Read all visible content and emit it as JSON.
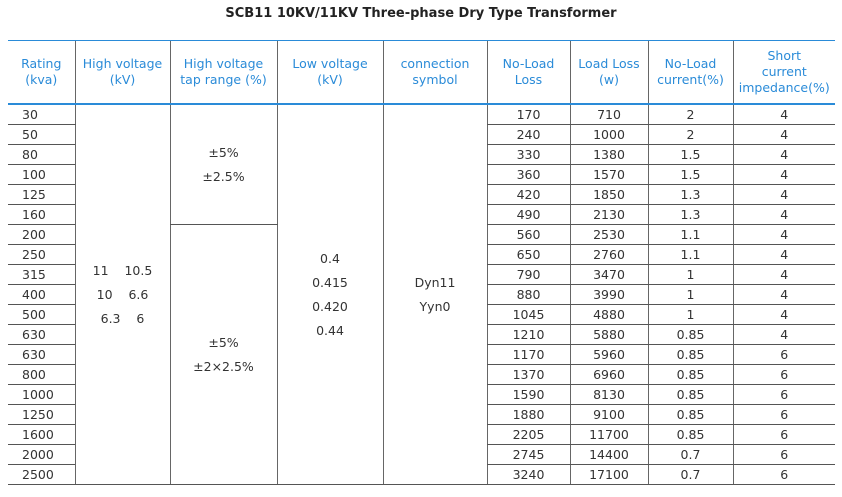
{
  "title": "SCB11  10KV/11KV Three-phase Dry Type Transformer",
  "table": {
    "headers": [
      [
        "Rating",
        "(kva)"
      ],
      [
        "High voltage",
        "(kV)"
      ],
      [
        "High voltage",
        "tap range (%)"
      ],
      [
        "Low voltage",
        "(kV)"
      ],
      [
        "connection",
        "symbol"
      ],
      [
        "No-Load",
        "Loss"
      ],
      [
        "Load Loss",
        "(w)"
      ],
      [
        "No-Load",
        "current(%)"
      ],
      [
        "Short",
        "current",
        "impedance(%)"
      ]
    ],
    "high_voltage": [
      "11    10.5",
      "10    6.6",
      "6.3    6"
    ],
    "tap_range": [
      [
        "±5%",
        "±2.5%"
      ],
      [
        "±5%",
        "±2×2.5%"
      ]
    ],
    "low_voltage": [
      "0.4",
      "0.415",
      "0.420",
      "0.44"
    ],
    "connection": [
      "Dyn11",
      "Yyn0"
    ],
    "rows": [
      [
        "30",
        "170",
        "710",
        "2",
        "4"
      ],
      [
        "50",
        "240",
        "1000",
        "2",
        "4"
      ],
      [
        "80",
        "330",
        "1380",
        "1.5",
        "4"
      ],
      [
        "100",
        "360",
        "1570",
        "1.5",
        "4"
      ],
      [
        "125",
        "420",
        "1850",
        "1.3",
        "4"
      ],
      [
        "160",
        "490",
        "2130",
        "1.3",
        "4"
      ],
      [
        "200",
        "560",
        "2530",
        "1.1",
        "4"
      ],
      [
        "250",
        "650",
        "2760",
        "1.1",
        "4"
      ],
      [
        "315",
        "790",
        "3470",
        "1",
        "4"
      ],
      [
        "400",
        "880",
        "3990",
        "1",
        "4"
      ],
      [
        "500",
        "1045",
        "4880",
        "1",
        "4"
      ],
      [
        "630",
        "1210",
        "5880",
        "0.85",
        "4"
      ],
      [
        "630",
        "1170",
        "5960",
        "0.85",
        "6"
      ],
      [
        "800",
        "1370",
        "6960",
        "0.85",
        "6"
      ],
      [
        "1000",
        "1590",
        "8130",
        "0.85",
        "6"
      ],
      [
        "1250",
        "1880",
        "9100",
        "0.85",
        "6"
      ],
      [
        "1600",
        "2205",
        "11700",
        "0.85",
        "6"
      ],
      [
        "2000",
        "2745",
        "14400",
        "0.7",
        "6"
      ],
      [
        "2500",
        "3240",
        "17100",
        "0.7",
        "6"
      ]
    ]
  }
}
